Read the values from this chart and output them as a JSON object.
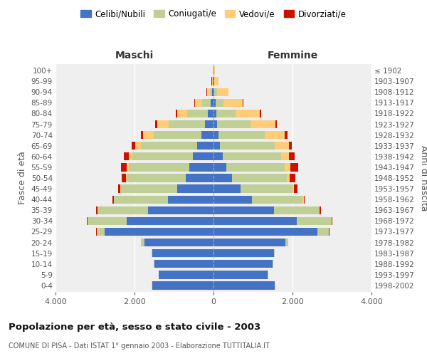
{
  "age_groups": [
    "0-4",
    "5-9",
    "10-14",
    "15-19",
    "20-24",
    "25-29",
    "30-34",
    "35-39",
    "40-44",
    "45-49",
    "50-54",
    "55-59",
    "60-64",
    "65-69",
    "70-74",
    "75-79",
    "80-84",
    "85-89",
    "90-94",
    "95-99",
    "100+"
  ],
  "birth_years": [
    "1998-2002",
    "1993-1997",
    "1988-1992",
    "1983-1987",
    "1978-1982",
    "1973-1977",
    "1968-1972",
    "1963-1967",
    "1958-1962",
    "1953-1957",
    "1948-1952",
    "1943-1947",
    "1938-1942",
    "1933-1937",
    "1928-1932",
    "1923-1927",
    "1918-1922",
    "1913-1917",
    "1908-1912",
    "1903-1907",
    "≤ 1902"
  ],
  "colors": {
    "celibi": "#4472C4",
    "coniugati": "#BFCF96",
    "vedovi": "#FFCC77",
    "divorziati": "#CC1100"
  },
  "maschi": {
    "celibi": [
      1550,
      1380,
      1500,
      1550,
      1750,
      2750,
      2200,
      1650,
      1150,
      920,
      710,
      620,
      530,
      420,
      300,
      220,
      150,
      80,
      30,
      10,
      5
    ],
    "coniugati": [
      5,
      5,
      5,
      10,
      80,
      200,
      980,
      1280,
      1370,
      1420,
      1470,
      1520,
      1520,
      1420,
      1220,
      920,
      520,
      200,
      60,
      15,
      5
    ],
    "vedovi": [
      5,
      5,
      5,
      5,
      5,
      5,
      5,
      5,
      10,
      20,
      40,
      60,
      100,
      150,
      260,
      290,
      250,
      180,
      80,
      20,
      5
    ],
    "divorziati": [
      5,
      5,
      5,
      5,
      5,
      20,
      30,
      30,
      20,
      60,
      100,
      150,
      120,
      80,
      60,
      50,
      30,
      20,
      10,
      5,
      2
    ]
  },
  "femmine": {
    "celibi": [
      1550,
      1350,
      1500,
      1530,
      1820,
      2630,
      2100,
      1530,
      980,
      680,
      470,
      330,
      230,
      170,
      120,
      90,
      80,
      55,
      25,
      10,
      5
    ],
    "coniugati": [
      5,
      5,
      5,
      12,
      70,
      280,
      880,
      1150,
      1280,
      1320,
      1380,
      1480,
      1480,
      1380,
      1180,
      850,
      480,
      200,
      60,
      15,
      5
    ],
    "vedovi": [
      5,
      5,
      5,
      5,
      5,
      5,
      5,
      10,
      20,
      40,
      80,
      130,
      200,
      360,
      510,
      620,
      620,
      480,
      290,
      105,
      30
    ],
    "divorziati": [
      5,
      5,
      5,
      5,
      5,
      20,
      30,
      30,
      30,
      80,
      150,
      200,
      150,
      80,
      70,
      50,
      30,
      20,
      10,
      5,
      2
    ]
  },
  "title": "Popolazione per età, sesso e stato civile - 2003",
  "subtitle": "COMUNE DI PISA - Dati ISTAT 1° gennaio 2003 - Elaborazione TUTTITALIA.IT",
  "xlabel_left": "Maschi",
  "xlabel_right": "Femmine",
  "ylabel_left": "Fasce di età",
  "ylabel_right": "Anni di nascita",
  "xlim": 4000,
  "legend_labels": [
    "Celibi/Nubili",
    "Coniugati/e",
    "Vedovi/e",
    "Divorziati/e"
  ],
  "background_color": "#ffffff",
  "plot_bg": "#EFEFEF",
  "bar_height": 0.75
}
